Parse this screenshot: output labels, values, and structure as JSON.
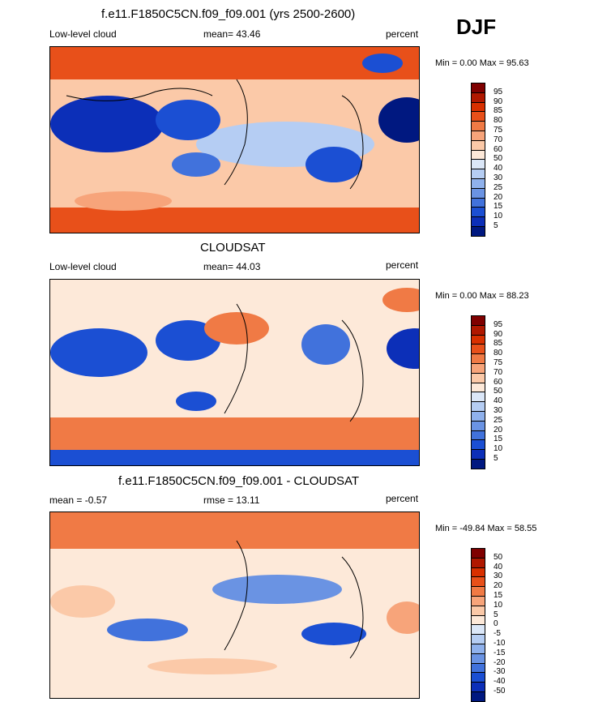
{
  "season": "DJF",
  "panels": [
    {
      "title": "f.e11.F1850C5CN.f09_f09.001 (yrs 2500-2600)",
      "left_label": "Low-level cloud",
      "center_label": "mean=  43.46",
      "right_label": "percent",
      "minmax": "Min =   0.00 Max =  95.63",
      "colorbar": {
        "labels": [
          "95",
          "90",
          "85",
          "80",
          "75",
          "70",
          "60",
          "50",
          "40",
          "30",
          "25",
          "20",
          "15",
          "10",
          "5"
        ],
        "colors": [
          "#7f0000",
          "#b01800",
          "#d83000",
          "#e8501a",
          "#f07a45",
          "#f7a47a",
          "#fbc9a8",
          "#fde9d9",
          "#dbe7f8",
          "#b5cdf3",
          "#8fb1ec",
          "#6a93e3",
          "#4172dc",
          "#1b4fd3",
          "#0c2fb8",
          "#001880"
        ]
      }
    },
    {
      "title": "CLOUDSAT",
      "left_label": "Low-level cloud",
      "center_label": "mean=  44.03",
      "right_label": "percent",
      "minmax": "Min =   0.00 Max =  88.23",
      "colorbar": {
        "labels": [
          "95",
          "90",
          "85",
          "80",
          "75",
          "70",
          "60",
          "50",
          "40",
          "30",
          "25",
          "20",
          "15",
          "10",
          "5"
        ],
        "colors": [
          "#7f0000",
          "#b01800",
          "#d83000",
          "#e8501a",
          "#f07a45",
          "#f7a47a",
          "#fbc9a8",
          "#fde9d9",
          "#dbe7f8",
          "#b5cdf3",
          "#8fb1ec",
          "#6a93e3",
          "#4172dc",
          "#1b4fd3",
          "#0c2fb8",
          "#001880"
        ]
      }
    },
    {
      "title": "f.e11.F1850C5CN.f09_f09.001 - CLOUDSAT",
      "left_label": "mean =  -0.57",
      "center_label": "rmse =  13.11",
      "right_label": "percent",
      "minmax": "Min = -49.84 Max =  58.55",
      "colorbar": {
        "labels": [
          "50",
          "40",
          "30",
          "20",
          "15",
          "10",
          "5",
          "0",
          "-5",
          "-10",
          "-15",
          "-20",
          "-30",
          "-40",
          "-50"
        ],
        "colors": [
          "#7f0000",
          "#b01800",
          "#d83000",
          "#e8501a",
          "#f07a45",
          "#f7a47a",
          "#fbc9a8",
          "#fde9d9",
          "#dbe7f8",
          "#b5cdf3",
          "#8fb1ec",
          "#6a93e3",
          "#4172dc",
          "#1b4fd3",
          "#0c2fb8",
          "#001880"
        ]
      }
    }
  ]
}
